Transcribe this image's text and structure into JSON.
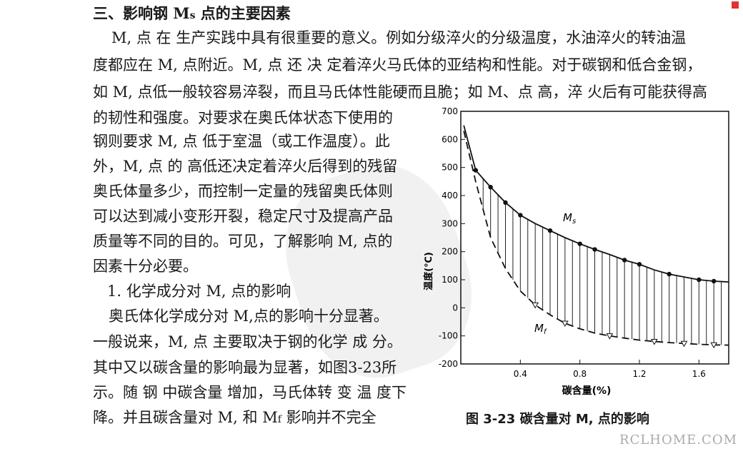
{
  "text": {
    "heading": "三、影响钢 M",
    "heading_sub": "s",
    "heading_rest": " 点的主要因素",
    "lines": [
      "M, 点 在 生产实践中具有很重要的意义。例如分级淬火的分级温度，水油淬火的转油温",
      "度都应在 M, 点附近。M, 点 还 决 定着淬火马氏体的亚结构和性能。对于碳钢和低合金钢，",
      "如 M, 点低一般较容易淬裂，而且马氏体性能硬而且脆；如 M、点 高，淬 火后有可能获得高",
      "的韧性和强度。对要求在奥氏体状态下使用的",
      "钢则要求 M, 点 低于室温（或工作温度）。此",
      "外，M, 点 的 高低还决定着淬火后得到的残留",
      "奥氏体量多少，而控制一定量的残留奥氏体则",
      "可以达到减小变形开裂，稳定尺寸及提高产品",
      "质量等不同的目的。可见，了解影响 M, 点的",
      "因素十分必要。",
      "1.  化学成分对 M, 点的影响",
      "奥氏体化学成分对 M,点的影响十分显著。",
      "一般说来，M, 点 主要取决于钢的化学 成 分。",
      "其中又以碳含量的影响最为显著，如图3-23所",
      "示。随 钢 中碳含量 增加，马氏体转 变 温 度下",
      "降。并且碳含量对 M, 和 M",
      "影响并不完全"
    ],
    "line16_sub": "f",
    "caption": "图 3-23    碳含量对 M, 点的影响",
    "watermark": "RCLHOME.COM"
  },
  "chart_data": {
    "type": "line",
    "xlabel": "碳含量(%)",
    "ylabel": "温度(℃)",
    "xlim": [
      0,
      1.8
    ],
    "ylim": [
      -200,
      700
    ],
    "xticks": [
      "0.4",
      "0.8",
      "1.2",
      "1.6"
    ],
    "yticks": [
      "700",
      "600",
      "500",
      "400",
      "300",
      "200",
      "100",
      "0",
      "-100",
      "-200"
    ],
    "series": [
      {
        "name": "Ms",
        "x": [
          0.02,
          0.1,
          0.2,
          0.3,
          0.4,
          0.5,
          0.6,
          0.7,
          0.8,
          0.9,
          1.0,
          1.1,
          1.2,
          1.3,
          1.4,
          1.5,
          1.6,
          1.7,
          1.8
        ],
        "y": [
          650,
          490,
          430,
          375,
          330,
          300,
          275,
          250,
          228,
          208,
          190,
          170,
          155,
          135,
          120,
          110,
          100,
          95,
          92
        ]
      },
      {
        "name": "Mf",
        "x": [
          0.02,
          0.1,
          0.2,
          0.3,
          0.4,
          0.5,
          0.6,
          0.7,
          0.8,
          0.9,
          1.0,
          1.1,
          1.2,
          1.3,
          1.4,
          1.5,
          1.6,
          1.7,
          1.8
        ],
        "y": [
          630,
          450,
          250,
          140,
          60,
          10,
          -25,
          -55,
          -75,
          -90,
          -100,
          -108,
          -115,
          -120,
          -124,
          -127,
          -130,
          -132,
          -133
        ]
      }
    ],
    "ms_points_x": [
      0.1,
      0.2,
      0.3,
      0.4,
      0.6,
      0.8,
      0.9,
      1.1,
      1.2,
      1.4,
      1.6,
      1.7
    ],
    "mf_points_x": [
      0.5,
      0.7,
      1.0,
      1.3,
      1.5,
      1.7
    ]
  }
}
